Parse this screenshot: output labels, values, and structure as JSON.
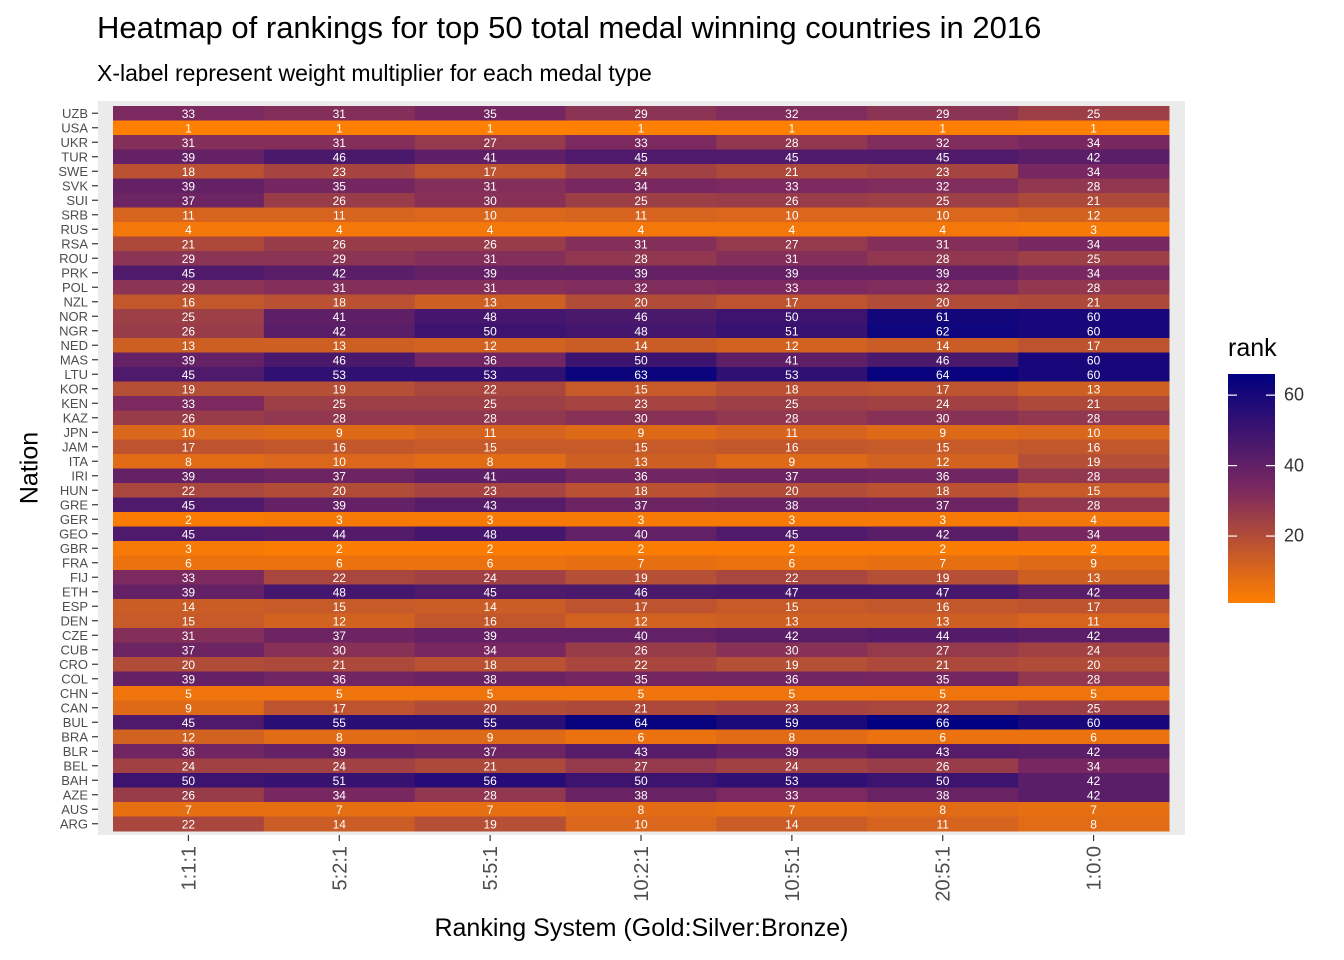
{
  "chart_data": {
    "type": "heatmap",
    "title": "Heatmap of rankings for top 50 total medal winning countries in 2016",
    "subtitle": "X-label represent weight multiplier for each medal type",
    "xlabel": "Ranking System (Gold:Silver:Bronze)",
    "ylabel": "Nation",
    "x": [
      "1:1:1",
      "5:2:1",
      "5:5:1",
      "10:2:1",
      "10:5:1",
      "20:5:1",
      "1:0:0"
    ],
    "y": [
      "UZB",
      "USA",
      "UKR",
      "TUR",
      "SWE",
      "SVK",
      "SUI",
      "SRB",
      "RUS",
      "RSA",
      "ROU",
      "PRK",
      "POL",
      "NZL",
      "NOR",
      "NGR",
      "NED",
      "MAS",
      "LTU",
      "KOR",
      "KEN",
      "KAZ",
      "JPN",
      "JAM",
      "ITA",
      "IRI",
      "HUN",
      "GRE",
      "GER",
      "GEO",
      "GBR",
      "FRA",
      "FIJ",
      "ETH",
      "ESP",
      "DEN",
      "CZE",
      "CUB",
      "CRO",
      "COL",
      "CHN",
      "CAN",
      "BUL",
      "BRA",
      "BLR",
      "BEL",
      "BAH",
      "AZE",
      "AUS",
      "ARG"
    ],
    "values": [
      [
        33,
        31,
        35,
        29,
        32,
        29,
        25
      ],
      [
        1,
        1,
        1,
        1,
        1,
        1,
        1
      ],
      [
        31,
        31,
        27,
        33,
        28,
        32,
        34
      ],
      [
        39,
        46,
        41,
        45,
        45,
        45,
        42
      ],
      [
        18,
        23,
        17,
        24,
        21,
        23,
        34
      ],
      [
        39,
        35,
        31,
        34,
        33,
        32,
        28
      ],
      [
        37,
        26,
        30,
        25,
        26,
        25,
        21
      ],
      [
        11,
        11,
        10,
        11,
        10,
        10,
        12
      ],
      [
        4,
        4,
        4,
        4,
        4,
        4,
        3
      ],
      [
        21,
        26,
        26,
        31,
        27,
        31,
        34
      ],
      [
        29,
        29,
        31,
        28,
        31,
        28,
        25
      ],
      [
        45,
        42,
        39,
        39,
        39,
        39,
        34
      ],
      [
        29,
        31,
        31,
        32,
        33,
        32,
        28
      ],
      [
        16,
        18,
        13,
        20,
        17,
        20,
        21
      ],
      [
        25,
        41,
        48,
        46,
        50,
        61,
        60
      ],
      [
        26,
        42,
        50,
        48,
        51,
        62,
        60
      ],
      [
        13,
        13,
        12,
        14,
        12,
        14,
        17
      ],
      [
        39,
        46,
        36,
        50,
        41,
        46,
        60
      ],
      [
        45,
        53,
        53,
        63,
        53,
        64,
        60
      ],
      [
        19,
        19,
        22,
        15,
        18,
        17,
        13
      ],
      [
        33,
        25,
        25,
        23,
        25,
        24,
        21
      ],
      [
        26,
        28,
        28,
        30,
        28,
        30,
        28
      ],
      [
        10,
        9,
        11,
        9,
        11,
        9,
        10
      ],
      [
        17,
        16,
        15,
        15,
        16,
        15,
        16
      ],
      [
        8,
        10,
        8,
        13,
        9,
        12,
        19
      ],
      [
        39,
        37,
        41,
        36,
        37,
        36,
        28
      ],
      [
        22,
        20,
        23,
        18,
        20,
        18,
        15
      ],
      [
        45,
        39,
        43,
        37,
        38,
        37,
        28
      ],
      [
        2,
        3,
        3,
        3,
        3,
        3,
        4
      ],
      [
        45,
        44,
        48,
        40,
        45,
        42,
        34
      ],
      [
        3,
        2,
        2,
        2,
        2,
        2,
        2
      ],
      [
        6,
        6,
        6,
        7,
        6,
        7,
        9
      ],
      [
        33,
        22,
        24,
        19,
        22,
        19,
        13
      ],
      [
        39,
        48,
        45,
        46,
        47,
        47,
        42
      ],
      [
        14,
        15,
        14,
        17,
        15,
        16,
        17
      ],
      [
        15,
        12,
        16,
        12,
        13,
        13,
        11
      ],
      [
        31,
        37,
        39,
        40,
        42,
        44,
        42
      ],
      [
        37,
        30,
        34,
        26,
        30,
        27,
        24
      ],
      [
        20,
        21,
        18,
        22,
        19,
        21,
        20
      ],
      [
        39,
        36,
        38,
        35,
        36,
        35,
        28
      ],
      [
        5,
        5,
        5,
        5,
        5,
        5,
        5
      ],
      [
        9,
        17,
        20,
        21,
        23,
        22,
        25
      ],
      [
        45,
        55,
        55,
        64,
        59,
        66,
        60
      ],
      [
        12,
        8,
        9,
        6,
        8,
        6,
        6
      ],
      [
        36,
        39,
        37,
        43,
        39,
        43,
        42
      ],
      [
        24,
        24,
        21,
        27,
        24,
        26,
        34
      ],
      [
        50,
        51,
        56,
        50,
        53,
        50,
        42
      ],
      [
        26,
        34,
        28,
        38,
        33,
        38,
        42
      ],
      [
        7,
        7,
        7,
        8,
        7,
        8,
        7
      ],
      [
        22,
        14,
        19,
        10,
        14,
        11,
        8
      ]
    ],
    "value_range": [
      1,
      66
    ],
    "legend": {
      "title": "rank",
      "ticks": [
        20,
        40,
        60
      ],
      "placement": "right",
      "color_low": "#ff7f00",
      "color_mid": "#7a2860",
      "color_high": "#000080"
    },
    "grid": true,
    "panel_background": "#ebebeb",
    "cell_label_color": "#ffffff"
  }
}
